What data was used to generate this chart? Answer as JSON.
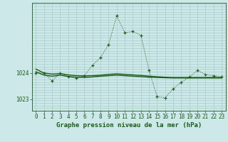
{
  "title": "Graphe pression niveau de la mer (hPa)",
  "background_color": "#cde8e8",
  "grid_color": "#aacccc",
  "line_color": "#1a5c1a",
  "xlim_min": -0.5,
  "xlim_max": 23.5,
  "ylim_min": 1022.55,
  "ylim_max": 1026.7,
  "yticks": [
    1023,
    1024
  ],
  "xticks": [
    0,
    1,
    2,
    3,
    4,
    5,
    6,
    7,
    8,
    9,
    10,
    11,
    12,
    13,
    14,
    15,
    16,
    17,
    18,
    19,
    20,
    21,
    22,
    23
  ],
  "jagged_x": [
    0,
    1,
    2,
    3,
    4,
    5,
    6,
    7,
    8,
    9,
    10,
    11,
    12,
    13,
    14,
    15,
    16,
    17,
    18,
    19,
    20,
    21,
    22,
    23
  ],
  "jagged_y": [
    1024.0,
    1024.0,
    1023.7,
    1024.0,
    1023.85,
    1023.8,
    1023.9,
    1024.3,
    1024.6,
    1025.1,
    1026.2,
    1025.55,
    1025.6,
    1025.45,
    1024.1,
    1023.1,
    1023.05,
    1023.4,
    1023.65,
    1023.85,
    1024.1,
    1023.95,
    1023.9,
    1023.85
  ],
  "trend1_x": [
    0,
    1,
    2,
    3,
    4,
    5,
    6,
    7,
    8,
    9,
    10,
    11,
    12,
    13,
    14,
    15,
    16,
    17,
    18,
    19,
    20,
    21,
    22,
    23
  ],
  "trend1_y": [
    1024.05,
    1023.92,
    1023.88,
    1023.92,
    1023.87,
    1023.84,
    1023.83,
    1023.85,
    1023.88,
    1023.9,
    1023.92,
    1023.9,
    1023.88,
    1023.86,
    1023.84,
    1023.83,
    1023.82,
    1023.81,
    1023.81,
    1023.81,
    1023.81,
    1023.81,
    1023.81,
    1023.81
  ],
  "trend2_x": [
    0,
    1,
    2,
    3,
    4,
    5,
    6,
    7,
    8,
    9,
    10,
    11,
    12,
    13,
    14,
    15,
    16,
    17,
    18,
    19,
    20,
    21,
    22,
    23
  ],
  "trend2_y": [
    1024.15,
    1024.0,
    1023.96,
    1023.98,
    1023.93,
    1023.9,
    1023.89,
    1023.9,
    1023.92,
    1023.95,
    1023.97,
    1023.95,
    1023.93,
    1023.91,
    1023.88,
    1023.86,
    1023.84,
    1023.83,
    1023.83,
    1023.83,
    1023.83,
    1023.83,
    1023.83,
    1023.83
  ],
  "tick_fontsize": 5.5,
  "title_fontsize": 6.5
}
